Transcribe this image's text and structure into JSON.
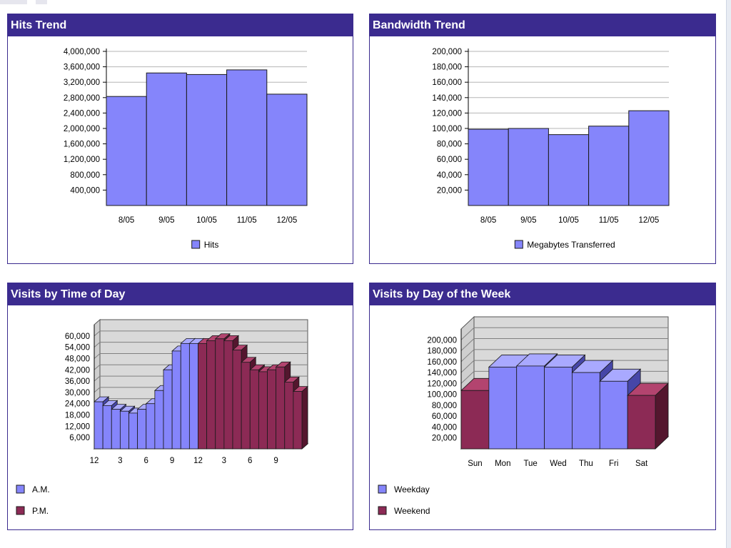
{
  "colors": {
    "header": "#3b2b8f",
    "blue": "#8585fb",
    "blue_top": "#a9a9ff",
    "blue_side": "#4646a8",
    "maroon": "#8c2a55",
    "maroon_top": "#b3446f",
    "maroon_side": "#54162e",
    "wall": "#d9d9d9",
    "grid": "#9a9a9a"
  },
  "panels": {
    "hits": {
      "title": "Hits Trend"
    },
    "bandwidth": {
      "title": "Bandwidth Trend"
    },
    "time_of_day": {
      "title": "Visits by Time of Day"
    },
    "day_of_week": {
      "title": "Visits by Day of the Week"
    }
  },
  "chart_data": [
    {
      "id": "hits",
      "type": "bar",
      "title": "Hits Trend",
      "categories": [
        "8/05",
        "9/05",
        "10/05",
        "11/05",
        "12/05"
      ],
      "series": [
        {
          "name": "Hits",
          "values": [
            2830000,
            3440000,
            3400000,
            3520000,
            2890000
          ]
        }
      ],
      "ylim": [
        0,
        4000000
      ],
      "yticks": [
        "400,000",
        "800,000",
        "1,200,000",
        "1,600,000",
        "2,000,000",
        "2,400,000",
        "2,800,000",
        "3,200,000",
        "3,600,000",
        "4,000,000"
      ],
      "grid": true,
      "legend": "bottom-center"
    },
    {
      "id": "bandwidth",
      "type": "bar",
      "title": "Bandwidth Trend",
      "categories": [
        "8/05",
        "9/05",
        "10/05",
        "11/05",
        "12/05"
      ],
      "series": [
        {
          "name": "Megabytes Transferred",
          "values": [
            99000,
            100000,
            92000,
            103000,
            123000
          ]
        }
      ],
      "ylim": [
        0,
        200000
      ],
      "yticks": [
        "20,000",
        "40,000",
        "60,000",
        "80,000",
        "100,000",
        "120,000",
        "140,000",
        "160,000",
        "180,000",
        "200,000"
      ],
      "grid": true,
      "legend": "bottom-center"
    },
    {
      "id": "time_of_day",
      "type": "bar",
      "title": "Visits by Time of Day",
      "categories": [
        "12",
        "1",
        "2",
        "3",
        "4",
        "5",
        "6",
        "7",
        "8",
        "9",
        "10",
        "11",
        "12",
        "1",
        "2",
        "3",
        "4",
        "5",
        "6",
        "7",
        "8",
        "9",
        "10",
        "11"
      ],
      "xtick_labels": [
        "12",
        "3",
        "6",
        "9",
        "12",
        "3",
        "6",
        "9"
      ],
      "series": [
        {
          "name": "A.M.",
          "values": [
            25000,
            23000,
            21000,
            20000,
            19000,
            21000,
            24000,
            31000,
            42000,
            52000,
            56000,
            56000,
            null,
            null,
            null,
            null,
            null,
            null,
            null,
            null,
            null,
            null,
            null,
            null
          ]
        },
        {
          "name": "P.M.",
          "values": [
            null,
            null,
            null,
            null,
            null,
            null,
            null,
            null,
            null,
            null,
            null,
            null,
            56000,
            57500,
            58500,
            57500,
            52500,
            46000,
            42000,
            41000,
            42000,
            43500,
            35500,
            30500
          ]
        }
      ],
      "ylim": [
        0,
        66000
      ],
      "yticks": [
        "6,000",
        "12,000",
        "18,000",
        "24,000",
        "30,000",
        "36,000",
        "42,000",
        "48,000",
        "54,000",
        "60,000"
      ],
      "grid": true,
      "three_d": true,
      "legend": "bottom-left"
    },
    {
      "id": "day_of_week",
      "type": "bar",
      "title": "Visits by Day of the Week",
      "categories": [
        "Sun",
        "Mon",
        "Tue",
        "Wed",
        "Thu",
        "Fri",
        "Sat"
      ],
      "series": [
        {
          "name": "Weekday",
          "values": [
            null,
            150000,
            152000,
            150000,
            140000,
            124000,
            null
          ]
        },
        {
          "name": "Weekend",
          "values": [
            107000,
            null,
            null,
            null,
            null,
            null,
            98000
          ]
        }
      ],
      "ylim": [
        0,
        220000
      ],
      "yticks": [
        "20,000",
        "40,000",
        "60,000",
        "80,000",
        "100,000",
        "120,000",
        "140,000",
        "160,000",
        "180,000",
        "200,000"
      ],
      "grid": true,
      "three_d": true,
      "legend": "bottom-left"
    }
  ]
}
